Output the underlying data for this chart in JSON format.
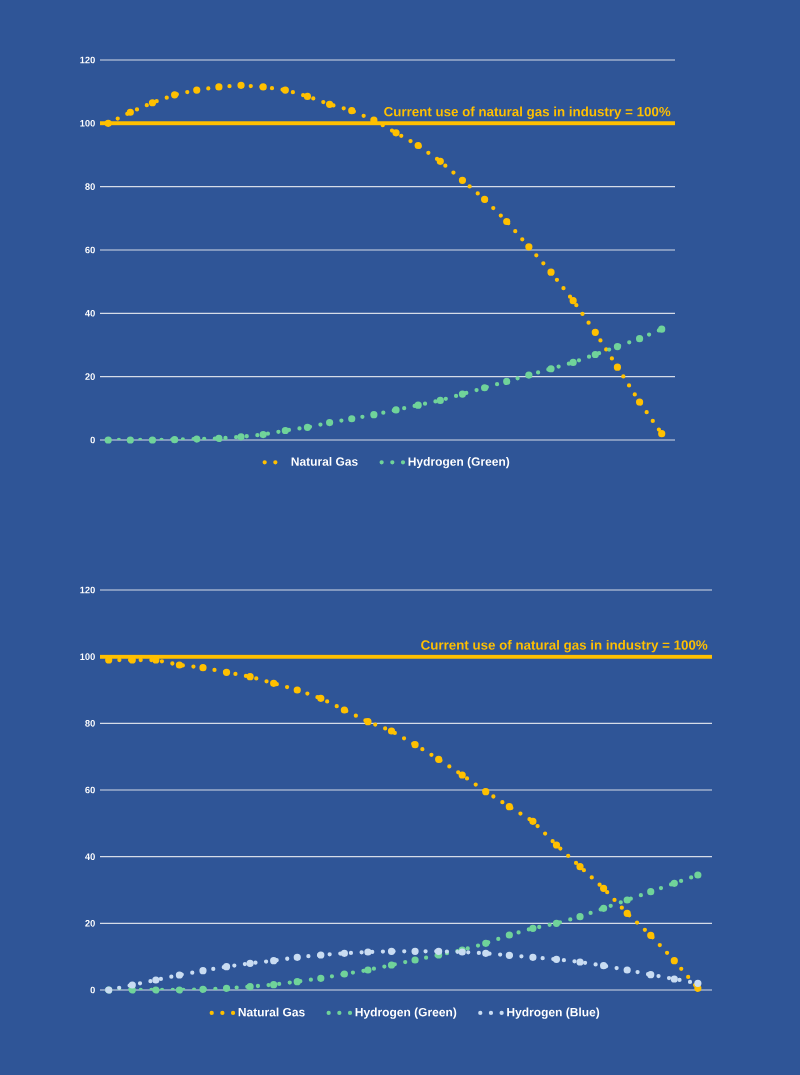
{
  "chart_data": [
    {
      "type": "line",
      "categories": [
        null,
        null,
        null,
        null,
        null,
        null,
        null,
        null,
        null,
        null,
        null,
        null,
        null,
        null,
        null,
        null,
        null,
        null,
        null,
        null,
        null,
        null,
        null,
        null,
        null,
        null
      ],
      "series": [
        {
          "name": "Natural Gas",
          "color": "#ffc000",
          "values": [
            100,
            103.5,
            106.5,
            109,
            110.5,
            111.5,
            112,
            111.5,
            110.5,
            108.5,
            106,
            104,
            101,
            97,
            93,
            88,
            82,
            76,
            69,
            61,
            53,
            44,
            34,
            23,
            12,
            2
          ]
        },
        {
          "name": "Hydrogen (Green)",
          "color": "#70d39a",
          "values": [
            0,
            0,
            0,
            0.1,
            0.3,
            0.5,
            1,
            1.7,
            3,
            4,
            5.5,
            6.7,
            8,
            9.5,
            11,
            12.5,
            14.5,
            16.5,
            18.5,
            20.5,
            22.5,
            24.5,
            27,
            29.5,
            32,
            35
          ]
        }
      ],
      "ylim": [
        0,
        120
      ],
      "yticks": [
        0,
        20,
        40,
        60,
        80,
        100,
        120
      ],
      "grid": "y",
      "legend": "bottom",
      "line_style": "dotted",
      "marker": "circle",
      "ref_lines": [
        {
          "axis": "y",
          "value": 100,
          "label": "Current use of natural gas in industry = 100%",
          "color": "#ffc000"
        }
      ]
    },
    {
      "type": "line",
      "categories": [
        null,
        null,
        null,
        null,
        null,
        null,
        null,
        null,
        null,
        null,
        null,
        null,
        null,
        null,
        null,
        null,
        null,
        null,
        null,
        null,
        null,
        null,
        null,
        null,
        null,
        null
      ],
      "series": [
        {
          "name": "Natural Gas",
          "color": "#ffc000",
          "values": [
            99,
            99,
            99,
            97.5,
            96.7,
            95.3,
            94,
            92,
            90,
            87.5,
            84,
            80.5,
            77.7,
            73.6,
            69.2,
            64.5,
            59.5,
            55,
            50.6,
            43.5,
            37,
            30.5,
            23,
            16.4,
            8.8,
            0.5
          ]
        },
        {
          "name": "Hydrogen (Green)",
          "color": "#70d39a",
          "values": [
            0,
            0,
            0,
            0,
            0.2,
            0.5,
            1,
            1.6,
            2.5,
            3.5,
            4.8,
            6,
            7.5,
            9,
            10.5,
            12,
            14,
            16.5,
            18.5,
            20,
            22,
            24.5,
            27,
            29.5,
            32,
            34.5
          ]
        },
        {
          "name": "Hydrogen (Blue)",
          "color": "#c9dcf2",
          "values": [
            0,
            1.5,
            3,
            4.5,
            5.8,
            7,
            8,
            8.8,
            9.8,
            10.5,
            11,
            11.4,
            11.6,
            11.6,
            11.6,
            11.4,
            11,
            10.4,
            9.8,
            9.2,
            8.4,
            7.3,
            6,
            4.6,
            3.3,
            2
          ]
        }
      ],
      "ylim": [
        0,
        120
      ],
      "yticks": [
        0,
        20,
        40,
        60,
        80,
        100,
        120
      ],
      "grid": "y",
      "legend": "bottom",
      "line_style": "dotted",
      "marker": "circle",
      "ref_lines": [
        {
          "axis": "y",
          "value": 100,
          "label": "Current use of natural gas in industry = 100%",
          "color": "#ffc000"
        }
      ]
    }
  ]
}
